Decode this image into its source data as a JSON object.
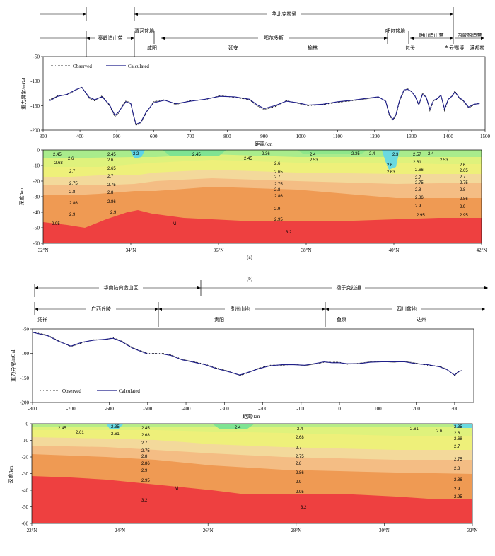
{
  "figure": {
    "label_a": "(a)",
    "label_b": "(b)"
  },
  "chart_data": [
    {
      "type": "line",
      "id": "a-profile",
      "xlabel": "距离/km",
      "ylabel": "重力异常/mGal",
      "xlim": [
        300,
        1500
      ],
      "ylim": [
        -200,
        -50
      ],
      "xticks": [
        300,
        400,
        500,
        600,
        700,
        800,
        900,
        1000,
        1100,
        1200,
        1300,
        1400,
        1500
      ],
      "yticks": [
        -50,
        -100,
        -150,
        -200
      ],
      "legend": [
        "Observed",
        "Calculated"
      ],
      "series": [
        {
          "name": "Observed",
          "style": "dotted",
          "x": [
            318,
            340,
            365,
            390,
            405,
            425,
            440,
            460,
            480,
            495,
            505,
            515,
            525,
            538,
            545,
            552,
            565,
            580,
            600,
            630,
            660,
            700,
            740,
            780,
            820,
            860,
            880,
            900,
            930,
            960,
            990,
            1020,
            1060,
            1100,
            1140,
            1180,
            1210,
            1230,
            1240,
            1250,
            1258,
            1268,
            1280,
            1290,
            1300,
            1310,
            1320,
            1330,
            1340,
            1350,
            1360,
            1368,
            1380,
            1390,
            1400,
            1410,
            1418,
            1430,
            1440,
            1455,
            1470,
            1485
          ],
          "y": [
            -138,
            -130,
            -128,
            -118,
            -112,
            -135,
            -140,
            -130,
            -150,
            -172,
            -165,
            -150,
            -140,
            -145,
            -170,
            -190,
            -186,
            -165,
            -142,
            -138,
            -148,
            -140,
            -138,
            -130,
            -133,
            -138,
            -150,
            -158,
            -152,
            -140,
            -145,
            -150,
            -148,
            -143,
            -140,
            -136,
            -133,
            -140,
            -170,
            -180,
            -170,
            -140,
            -120,
            -115,
            -122,
            -130,
            -150,
            -125,
            -132,
            -160,
            -140,
            -138,
            -128,
            -160,
            -138,
            -130,
            -120,
            -135,
            -140,
            -155,
            -148,
            -145
          ]
        },
        {
          "name": "Calculated",
          "style": "solid",
          "x": [
            318,
            340,
            365,
            390,
            405,
            425,
            440,
            460,
            480,
            495,
            505,
            515,
            525,
            538,
            545,
            552,
            565,
            580,
            600,
            630,
            660,
            700,
            740,
            780,
            820,
            860,
            880,
            900,
            930,
            960,
            990,
            1020,
            1060,
            1100,
            1140,
            1180,
            1210,
            1230,
            1240,
            1250,
            1258,
            1268,
            1280,
            1290,
            1300,
            1310,
            1320,
            1330,
            1340,
            1350,
            1360,
            1368,
            1380,
            1390,
            1400,
            1410,
            1418,
            1430,
            1440,
            1455,
            1470,
            1485
          ],
          "y": [
            -140,
            -131,
            -127,
            -117,
            -113,
            -133,
            -138,
            -132,
            -148,
            -170,
            -163,
            -152,
            -142,
            -146,
            -168,
            -188,
            -184,
            -163,
            -144,
            -139,
            -146,
            -141,
            -137,
            -131,
            -132,
            -137,
            -148,
            -156,
            -150,
            -141,
            -144,
            -149,
            -147,
            -142,
            -139,
            -135,
            -132,
            -141,
            -168,
            -178,
            -168,
            -138,
            -118,
            -117,
            -121,
            -131,
            -148,
            -127,
            -133,
            -157,
            -139,
            -137,
            -129,
            -157,
            -137,
            -131,
            -122,
            -134,
            -139,
            -153,
            -147,
            -146
          ]
        }
      ]
    },
    {
      "type": "heatmap",
      "id": "a-section",
      "ylabel": "深度/km",
      "xlim": [
        31.8,
        42.4
      ],
      "ylim": [
        -60,
        0
      ],
      "xticks": [
        "32°N",
        "34°N",
        "36°N",
        "38°N",
        "40°N",
        "42°N"
      ],
      "yticks": [
        0,
        -10,
        -20,
        -30,
        -40,
        -50,
        -60
      ],
      "densities": [
        "2.2",
        "2.3",
        "2.35",
        "2.36",
        "2.4",
        "2.45",
        "2.53",
        "2.57",
        "2.6",
        "2.61",
        "2.63",
        "2.65",
        "2.66",
        "2.68",
        "2.7",
        "2.75",
        "2.8",
        "2.86",
        "2.9",
        "2.95",
        "3.2"
      ],
      "annotations": [
        "2.45",
        "2.6",
        "2.68",
        "2.7",
        "2.75",
        "2.8",
        "2.86",
        "2.9",
        "2.95",
        "2.45",
        "2.6",
        "2.65",
        "2.7",
        "2.75",
        "2.8",
        "2.86",
        "2.9",
        "2.2",
        "2.45",
        "2.45",
        "2.36",
        "2.6",
        "2.65",
        "2.7",
        "2.75",
        "2.8",
        "2.86",
        "2.9",
        "2.95",
        "3.2",
        "2.4",
        "2.53",
        "2.35",
        "2.4",
        "2.3",
        "2.6",
        "2.63",
        "2.57",
        "2.61",
        "2.66",
        "2.7",
        "2.75",
        "2.8",
        "2.86",
        "2.9",
        "2.95",
        "2.4",
        "2.53",
        "2.6",
        "2.65",
        "2.7",
        "2.75",
        "2.8",
        "2.86",
        "2.9",
        "2.95",
        "M"
      ]
    },
    {
      "type": "line",
      "id": "b-profile",
      "xlabel": "距离/km",
      "ylabel": "重力异常/mGal",
      "xlim": [
        -800,
        350
      ],
      "ylim": [
        -200,
        -50
      ],
      "xticks": [
        -800,
        -700,
        -600,
        -500,
        -400,
        -300,
        -200,
        -100,
        0,
        100,
        200,
        300
      ],
      "yticks": [
        -50,
        -100,
        -150,
        -200
      ],
      "legend": [
        "Observed",
        "Calculated"
      ],
      "series": [
        {
          "name": "Observed",
          "style": "dotted",
          "x": [
            -800,
            -760,
            -730,
            -700,
            -670,
            -640,
            -610,
            -590,
            -570,
            -540,
            -500,
            -460,
            -440,
            -410,
            -380,
            -350,
            -320,
            -290,
            -260,
            -240,
            -210,
            -180,
            -150,
            -120,
            -90,
            -60,
            -40,
            -20,
            0,
            20,
            50,
            80,
            110,
            140,
            170,
            200,
            230,
            260,
            280,
            300,
            310,
            320
          ],
          "y": [
            -56,
            -63,
            -75,
            -86,
            -78,
            -72,
            -72,
            -68,
            -74,
            -88,
            -100,
            -100,
            -103,
            -112,
            -117,
            -122,
            -130,
            -136,
            -145,
            -140,
            -130,
            -124,
            -124,
            -122,
            -125,
            -121,
            -118,
            -118,
            -118,
            -122,
            -120,
            -117,
            -116,
            -118,
            -116,
            -120,
            -124,
            -126,
            -132,
            -145,
            -138,
            -134
          ]
        },
        {
          "name": "Calculated",
          "style": "solid",
          "x": [
            -800,
            -760,
            -730,
            -700,
            -670,
            -640,
            -610,
            -590,
            -570,
            -540,
            -500,
            -460,
            -440,
            -410,
            -380,
            -350,
            -320,
            -290,
            -260,
            -240,
            -210,
            -180,
            -150,
            -120,
            -90,
            -60,
            -40,
            -20,
            0,
            20,
            50,
            80,
            110,
            140,
            170,
            200,
            230,
            260,
            280,
            300,
            310,
            320
          ],
          "y": [
            -57,
            -64,
            -76,
            -85,
            -77,
            -73,
            -71,
            -69,
            -75,
            -89,
            -101,
            -101,
            -104,
            -113,
            -118,
            -123,
            -131,
            -137,
            -144,
            -139,
            -131,
            -125,
            -123,
            -123,
            -124,
            -120,
            -117,
            -119,
            -119,
            -121,
            -121,
            -118,
            -117,
            -117,
            -117,
            -121,
            -123,
            -127,
            -133,
            -144,
            -137,
            -135
          ]
        }
      ]
    },
    {
      "type": "heatmap",
      "id": "b-section",
      "ylabel": "深度/km",
      "xlim": [
        22,
        32
      ],
      "ylim": [
        -60,
        0
      ],
      "xticks": [
        "22°N",
        "24°N",
        "26°N",
        "28°N",
        "30°N",
        "32°N"
      ],
      "yticks": [
        0,
        -10,
        -20,
        -30,
        -40,
        -50,
        -60
      ],
      "annotations": [
        "2.45",
        "2.61",
        "2.35",
        "2.61",
        "2.45",
        "2.68",
        "2.7",
        "2.75",
        "2.8",
        "2.86",
        "2.9",
        "2.95",
        "3.2",
        "2.4",
        "2.4",
        "2.68",
        "2.7",
        "2.75",
        "2.8",
        "2.86",
        "2.9",
        "2.95",
        "3.2",
        "2.61",
        "2.6",
        "2.35",
        "2.6",
        "2.68",
        "2.7",
        "2.75",
        "2.8",
        "2.86",
        "2.9",
        "2.95",
        "M"
      ]
    }
  ],
  "header_a": {
    "top_segments": [
      "华北克拉通"
    ],
    "regions": [
      "秦岭造山带",
      "渭河盆地",
      "鄂尔多斯",
      "呼包盆地",
      "阴山造山带",
      "内蒙构造带"
    ],
    "cities": [
      "咸阳",
      "延安",
      "榆林",
      "包头",
      "白云鄂博",
      "满都拉"
    ]
  },
  "header_b": {
    "top_segments": [
      "华南陆内造山区",
      "扬子克拉通"
    ],
    "regions": [
      "广西丘陵",
      "贵州山地",
      "四川盆地"
    ],
    "cities": [
      "凭祥",
      "贵阳",
      "鱼泉",
      "达州"
    ]
  }
}
